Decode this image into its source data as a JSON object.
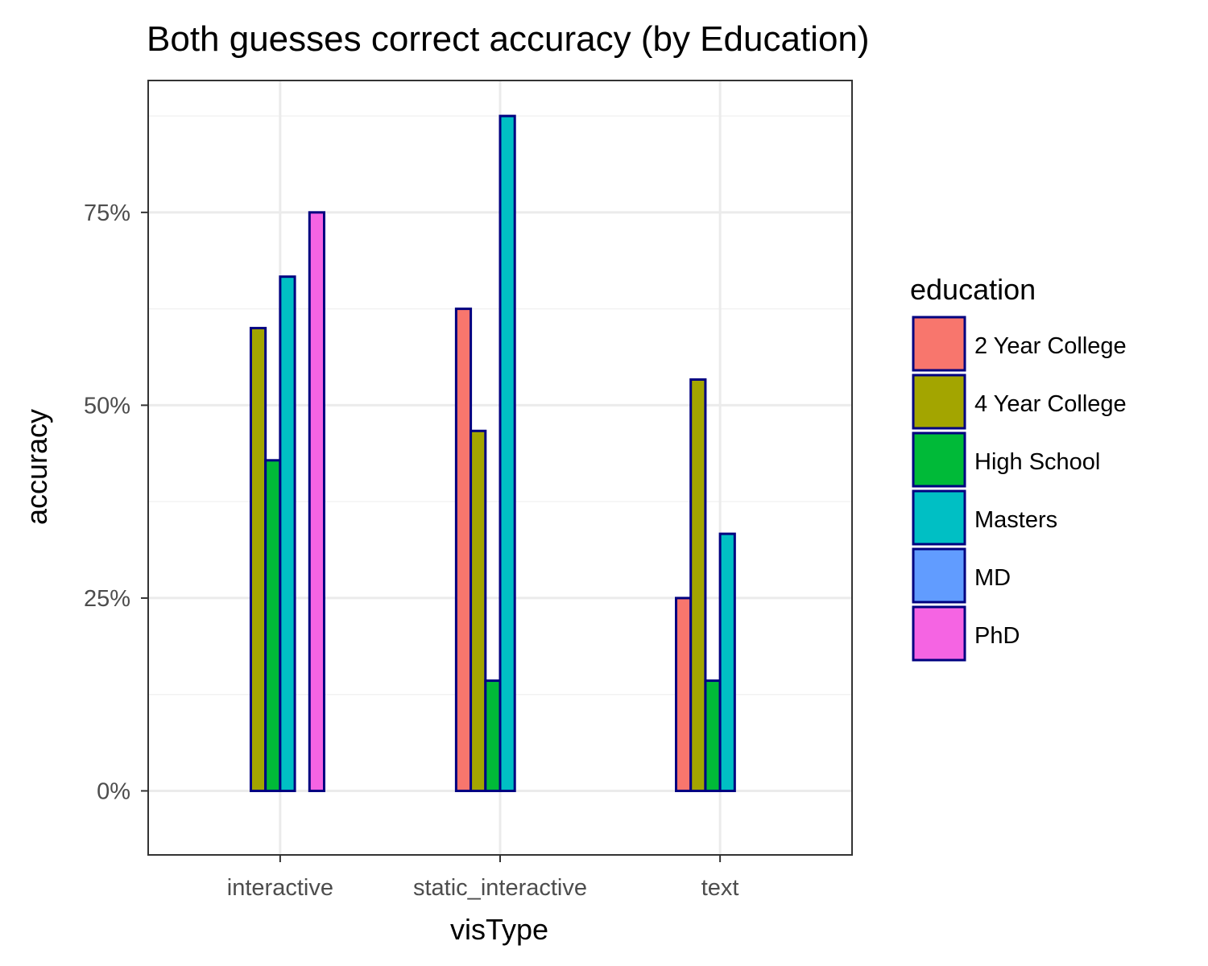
{
  "colors": {
    "bar_outline": "#000080",
    "grid_major": "#EBEBEB",
    "grid_minor": "#F2F2F2",
    "panel_border": "#333333",
    "tick_text": "#4D4D4D",
    "text": "#000000"
  },
  "chart_data": {
    "type": "bar",
    "title": "Both guesses correct accuracy (by Education)",
    "xlabel": "visType",
    "ylabel": "accuracy",
    "categories": [
      "interactive",
      "static_interactive",
      "text"
    ],
    "ylim": [
      -0.083,
      0.921
    ],
    "y_ticks": [
      {
        "value": 0,
        "label": "0%"
      },
      {
        "value": 0.25,
        "label": "25%"
      },
      {
        "value": 0.5,
        "label": "50%"
      },
      {
        "value": 0.75,
        "label": "75%"
      }
    ],
    "grid": true,
    "legend": {
      "title": "education",
      "position": "right"
    },
    "series": [
      {
        "name": "2 Year College",
        "color": "#F8766D",
        "values": [
          0,
          0.625,
          0.25
        ]
      },
      {
        "name": "4 Year College",
        "color": "#A3A500",
        "values": [
          0.6,
          0.4667,
          0.5333
        ]
      },
      {
        "name": "High School",
        "color": "#00BA38",
        "values": [
          0.4286,
          0.1429,
          0.1429
        ]
      },
      {
        "name": "Masters",
        "color": "#00BFC4",
        "values": [
          0.6667,
          0.875,
          0.3333
        ]
      },
      {
        "name": "MD",
        "color": "#619CFF",
        "values": [
          0,
          null,
          0
        ]
      },
      {
        "name": "PhD",
        "color": "#F564E3",
        "values": [
          0.75,
          null,
          null
        ]
      }
    ]
  }
}
